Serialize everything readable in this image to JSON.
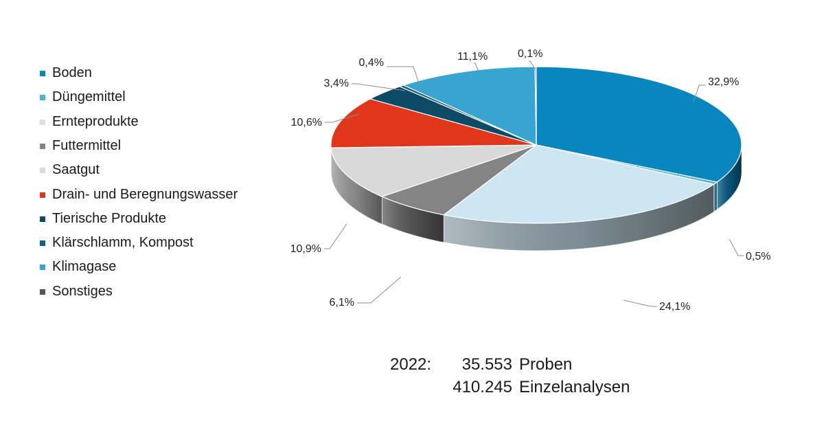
{
  "chart_data": {
    "type": "pie",
    "categories": [
      "Boden",
      "Düngemittel",
      "Ernteprodukte",
      "Futtermittel",
      "Saatgut",
      "Drain- und Beregnungswasser",
      "Tierische Produkte",
      "Klärschlamm, Kompost",
      "Klimagase",
      "Sonstiges"
    ],
    "values": [
      32.9,
      0.5,
      24.1,
      6.1,
      10.9,
      10.6,
      3.4,
      0.4,
      11.1,
      0.1
    ],
    "data_labels": [
      "32,9%",
      "0,5%",
      "24,1%",
      "6,1%",
      "10,9%",
      "10,6%",
      "3,4%",
      "0,4%",
      "11,1%",
      "0,1%"
    ],
    "colors": [
      "#0a86bf",
      "#4fb1dd",
      "#cde6f2",
      "#848484",
      "#d9d9d9",
      "#e0361c",
      "#0c4a66",
      "#11607f",
      "#3aa4d1",
      "#555555"
    ],
    "legend_position": "left",
    "style": "3d-tilted"
  },
  "summary": {
    "year": "2022:",
    "samples_value": "35.553",
    "samples_label": "Proben",
    "analyses_value": "410.245",
    "analyses_label": "Einzelanalysen"
  }
}
